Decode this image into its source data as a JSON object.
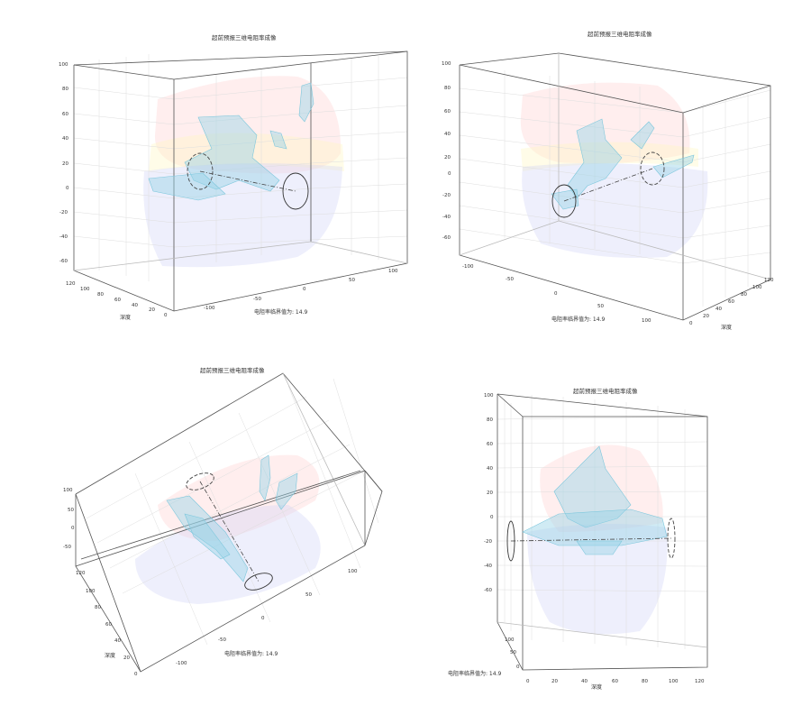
{
  "chart_data": [
    {
      "type": "scatter",
      "title": "超前预报三维电阻率成像",
      "annotation": "电阻率临界值为:  14.9",
      "ylabel": "深度",
      "z_ticks": [
        "100",
        "80",
        "60",
        "40",
        "20",
        "0",
        "-20",
        "-40",
        "-60"
      ],
      "x_ticks": [
        "-100",
        "-50",
        "0",
        "50",
        "100"
      ],
      "y_ticks": [
        "120",
        "100",
        "80",
        "60",
        "40",
        "20",
        "0"
      ]
    },
    {
      "type": "scatter",
      "title": "超前预报三维电阻率成像",
      "annotation": "电阻率临界值为:  14.9",
      "ylabel": "深度",
      "z_ticks": [
        "100",
        "80",
        "60",
        "40",
        "20",
        "0",
        "-20",
        "-40",
        "-60"
      ],
      "x_ticks": [
        "-100",
        "-50",
        "0",
        "50",
        "100"
      ],
      "y_ticks": [
        "0",
        "20",
        "40",
        "60",
        "80",
        "100",
        "120"
      ]
    },
    {
      "type": "scatter",
      "title": "超前预报三维电阻率成像",
      "annotation": "电阻率临界值为:  14.9",
      "ylabel": "深度",
      "z_ticks": [
        "100",
        "50",
        "0",
        "-50"
      ],
      "x_ticks": [
        "-100",
        "-50",
        "0",
        "50",
        "100"
      ],
      "y_ticks": [
        "120",
        "100",
        "80",
        "60",
        "40",
        "20",
        "0"
      ]
    },
    {
      "type": "scatter",
      "title": "超前预报三维电阻率成像",
      "annotation": "电阻率临界值为:  14.9",
      "ylabel": "深度",
      "z_ticks": [
        "100",
        "80",
        "60",
        "40",
        "20",
        "0",
        "-20",
        "-40",
        "-60"
      ],
      "x_ticks": [
        "0",
        "20",
        "40",
        "60",
        "80",
        "100",
        "120"
      ],
      "y_ticks": [
        "100",
        "50",
        "0"
      ]
    }
  ],
  "colors": {
    "mesh": "#7cc7dc",
    "box": "#555555",
    "grid": "#dedede"
  }
}
